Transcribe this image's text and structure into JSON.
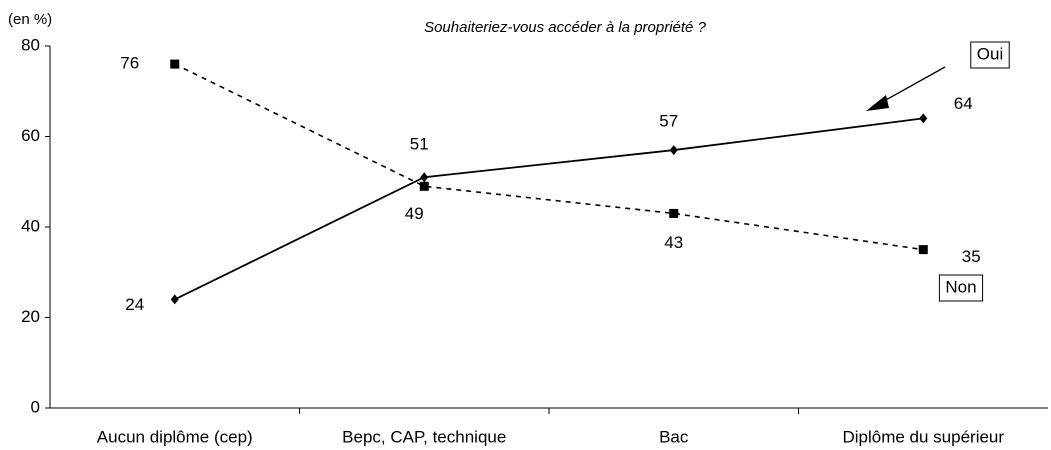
{
  "chart_data": {
    "type": "line",
    "title": "Souhaiteriez-vous accéder à la propriété ?",
    "y_label": "(en %)",
    "categories": [
      "Aucun diplôme (cep)",
      "Bepc, CAP, technique",
      "Bac",
      "Diplôme du supérieur"
    ],
    "series": [
      {
        "name": "Oui",
        "color": "#000000",
        "values": [
          24,
          51,
          57,
          64
        ]
      },
      {
        "name": "Non",
        "color": "#000000",
        "values": [
          76,
          49,
          43,
          35
        ]
      }
    ],
    "ylim": [
      0,
      80
    ],
    "yticks": [
      0,
      20,
      40,
      60,
      80
    ]
  }
}
